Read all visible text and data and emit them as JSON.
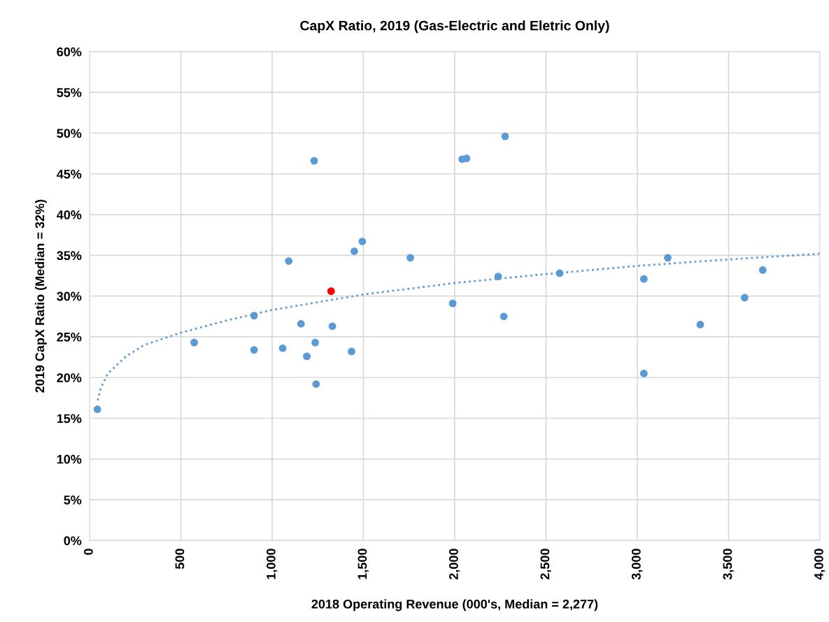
{
  "chart_data": {
    "type": "scatter",
    "title": "CapX Ratio, 2019 (Gas-Electric and Eletric Only)",
    "xlabel": "2018 Operating Revenue (000's, Median = 2,277)",
    "ylabel": "2019 CapX Ratio (Median = 32%)",
    "series": [
      {
        "color": "#5b9bd5",
        "x": [
          43,
          573,
          901,
          901,
          1058,
          1091,
          1158,
          1190,
          1230,
          1236,
          1241,
          1330,
          1435,
          1450,
          1494,
          1757,
          2041,
          2065,
          2276,
          1989,
          2238,
          2269,
          2575,
          3036,
          3036,
          3167,
          3345,
          3588,
          3687
        ],
        "values": [
          16.1,
          24.3,
          27.6,
          23.4,
          23.6,
          34.3,
          26.6,
          22.6,
          46.6,
          24.3,
          19.2,
          26.3,
          23.2,
          35.5,
          36.7,
          34.7,
          46.8,
          46.9,
          49.6,
          29.1,
          32.4,
          27.5,
          32.8,
          32.1,
          20.5,
          34.7,
          26.5,
          29.8,
          33.2
        ]
      },
      {
        "color": "#ff0000",
        "x": [
          1323
        ],
        "values": [
          30.6
        ]
      },
      {
        "type": "line",
        "line_style": "dotted",
        "marker": "none",
        "color": "#5b9bd5",
        "x": [
          45,
          60,
          100,
          200,
          300,
          500,
          750,
          1000,
          1500,
          2000,
          2500,
          3000,
          3500,
          4000
        ],
        "values": [
          17.2,
          18.6,
          20.5,
          22.6,
          24.0,
          25.5,
          27.0,
          28.3,
          30.2,
          31.6,
          32.7,
          33.7,
          34.5,
          35.2
        ]
      }
    ],
    "marker": "circle",
    "grid": true,
    "xlim": [
      0,
      4000
    ],
    "xticks": [
      0,
      500,
      {
        "value": 1000,
        "label": "1,000"
      },
      {
        "value": 1500,
        "label": "1,500"
      },
      {
        "value": 2000,
        "label": "2,000"
      },
      {
        "value": 2500,
        "label": "2,500"
      },
      {
        "value": 3000,
        "label": "3,000"
      },
      {
        "value": 3500,
        "label": "3,500"
      },
      {
        "value": 4000,
        "label": "4,000"
      }
    ],
    "ylim": [
      0,
      60
    ],
    "yticks": [
      {
        "value": 0,
        "label": "0%"
      },
      {
        "value": 5,
        "label": "5%"
      },
      {
        "value": 10,
        "label": "10%"
      },
      {
        "value": 15,
        "label": "15%"
      },
      {
        "value": 20,
        "label": "20%"
      },
      {
        "value": 25,
        "label": "25%"
      },
      {
        "value": 30,
        "label": "30%"
      },
      {
        "value": 35,
        "label": "35%"
      },
      {
        "value": 40,
        "label": "40%"
      },
      {
        "value": 45,
        "label": "45%"
      },
      {
        "value": 50,
        "label": "50%"
      },
      {
        "value": 55,
        "label": "55%"
      },
      {
        "value": 60,
        "label": "60%"
      }
    ]
  }
}
